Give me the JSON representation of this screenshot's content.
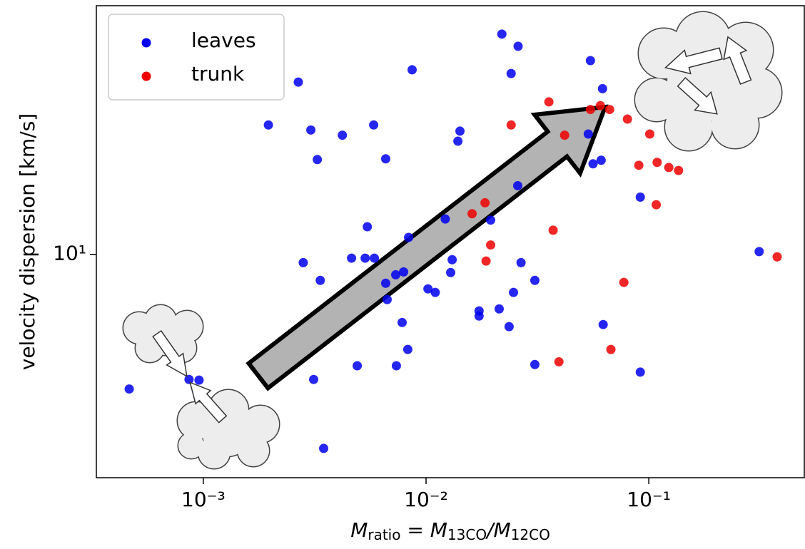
{
  "chart_data": {
    "type": "scatter",
    "xlabel": [
      "M",
      "ratio",
      " = M",
      "13CO",
      "/M",
      "12CO"
    ],
    "ylabel": "velocity dispersion [km/s]",
    "xscale": "log",
    "yscale": "log",
    "xlim": [
      0.000331,
      0.499
    ],
    "ylim": [
      2,
      60
    ],
    "xticks": [
      {
        "value": 0.001,
        "label": "10⁻³"
      },
      {
        "value": 0.01,
        "label": "10⁻²"
      },
      {
        "value": 0.1,
        "label": "10⁻¹"
      }
    ],
    "yticks": [
      {
        "value": 10,
        "label": "10¹"
      }
    ],
    "legend": "upper left",
    "series": [
      {
        "name": "leaves",
        "color": "#0000ee",
        "x": [
          0.000465,
          0.000863,
          0.000957,
          0.00267,
          0.00196,
          0.00304,
          0.00325,
          0.00281,
          0.00335,
          0.00313,
          0.00347,
          0.00421,
          0.00463,
          0.00491,
          0.00533,
          0.00545,
          0.00582,
          0.00586,
          0.00659,
          0.00659,
          0.00669,
          0.00731,
          0.00736,
          0.00793,
          0.00781,
          0.00828,
          0.00835,
          0.00866,
          0.0102,
          0.011,
          0.0122,
          0.0131,
          0.0129,
          0.0139,
          0.0142,
          0.0173,
          0.0173,
          0.0195,
          0.0213,
          0.0219,
          0.0236,
          0.0241,
          0.0247,
          0.0259,
          0.0258,
          0.0267,
          0.0308,
          0.0308,
          0.0547,
          0.0535,
          0.0562,
          0.0611,
          0.062,
          0.0624,
          0.0916,
          0.0916,
          0.313
        ],
        "values": [
          3.79,
          4.06,
          4.04,
          34.6,
          25.4,
          24.5,
          19.8,
          9.42,
          8.29,
          4.06,
          2.47,
          23.6,
          9.73,
          4.48,
          9.73,
          12.2,
          25.4,
          9.73,
          19.9,
          8.12,
          7.22,
          8.63,
          4.48,
          8.81,
          6.12,
          5.04,
          11.3,
          37.8,
          7.8,
          7.6,
          12.9,
          9.62,
          8.77,
          22.6,
          24.3,
          6.41,
          6.65,
          12.8,
          6.75,
          48.9,
          5.94,
          36.8,
          7.6,
          44.8,
          16.4,
          9.42,
          8.29,
          4.52,
          40.4,
          23.8,
          19.2,
          19.7,
          33.0,
          6.03,
          15.1,
          4.28,
          10.2
        ]
      },
      {
        "name": "trunk",
        "color": "#ee0000",
        "x": [
          0.0241,
          0.0356,
          0.0419,
          0.0547,
          0.0606,
          0.0667,
          0.0802,
          0.101,
          0.0902,
          0.109,
          0.123,
          0.136,
          0.108,
          0.0372,
          0.0161,
          0.0184,
          0.0195,
          0.0186,
          0.0395,
          0.0676,
          0.0773,
          0.377
        ],
        "values": [
          25.4,
          30.0,
          23.6,
          28.4,
          29.2,
          28.4,
          26.5,
          23.8,
          19.0,
          19.4,
          18.7,
          18.3,
          14.3,
          11.9,
          13.4,
          14.5,
          10.7,
          9.53,
          4.61,
          5.04,
          8.17,
          9.82
        ]
      }
    ]
  }
}
